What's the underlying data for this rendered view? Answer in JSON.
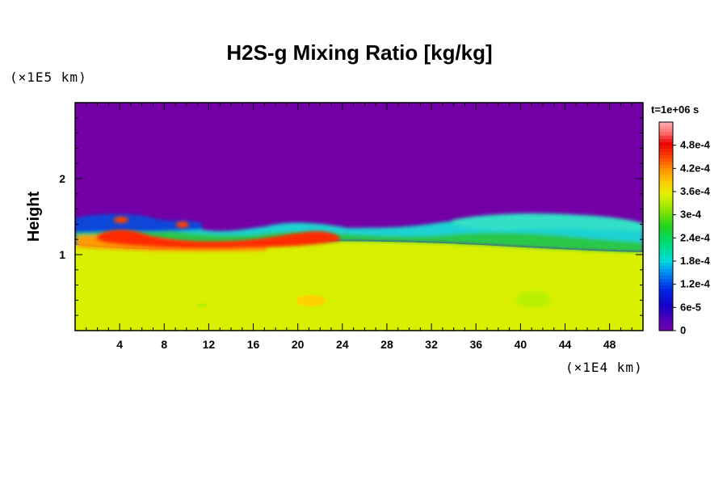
{
  "chart_data": {
    "type": "heatmap",
    "title": "H2S-g Mixing Ratio [kg/kg]",
    "ylabel": "Height",
    "y_unit": "(×1E5 km)",
    "x_unit": "(×1E4 km)",
    "time_label": "t=1e+06 s",
    "xlim": [
      0,
      51
    ],
    "ylim": [
      0,
      3
    ],
    "x_ticks": [
      "4",
      "8",
      "12",
      "16",
      "20",
      "24",
      "28",
      "32",
      "36",
      "40",
      "44",
      "48"
    ],
    "x_tick_values": [
      4,
      8,
      12,
      16,
      20,
      24,
      28,
      32,
      36,
      40,
      44,
      48
    ],
    "y_ticks": [
      "1",
      "2"
    ],
    "y_tick_values": [
      1,
      2
    ],
    "colorbar": {
      "range": [
        0,
        0.00054
      ],
      "ticks": [
        "0",
        "6e-5",
        "1.2e-4",
        "1.8e-4",
        "2.4e-4",
        "3e-4",
        "3.6e-4",
        "4.2e-4",
        "4.8e-4"
      ],
      "tick_values": [
        0,
        6e-05,
        0.00012,
        0.00018,
        0.00024,
        0.0003,
        0.00036,
        0.00042,
        0.00048
      ]
    },
    "field_summary": {
      "upper_layer_value": 0,
      "lower_layer_value": 0.00033,
      "interface_height": 1.3,
      "max_value": 0.00052
    },
    "colors": {
      "background_field": "#7300a6",
      "lower_field": "#d8f000"
    }
  }
}
